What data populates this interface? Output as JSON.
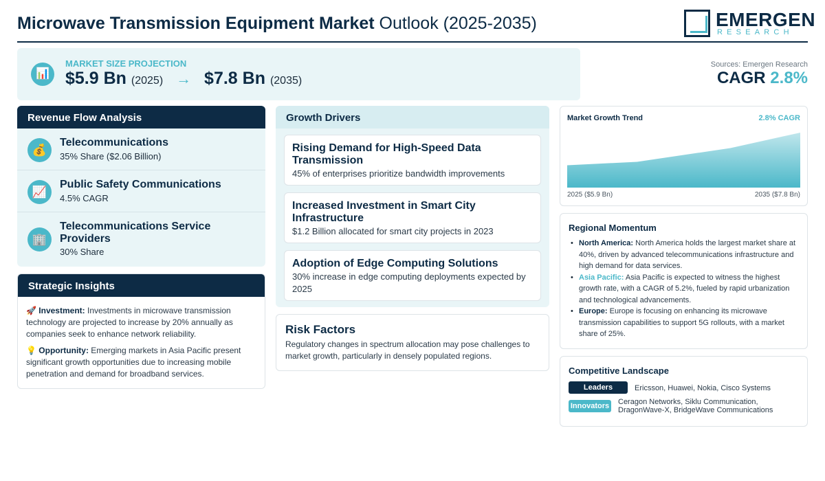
{
  "header": {
    "title_bold": "Microwave Transmission Equipment Market",
    "title_light": "Outlook (2025-2035)",
    "logo_name": "EMERGEN",
    "logo_sub": "RESEARCH"
  },
  "projection": {
    "icon": "bar-chart-icon",
    "label": "MARKET SIZE PROJECTION",
    "start_value": "$5.9 Bn",
    "start_year": "(2025)",
    "arrow": "→",
    "end_value": "$7.8 Bn",
    "end_year": "(2035)"
  },
  "summary": {
    "sources": "Sources: Emergen Research",
    "cagr_label": "CAGR",
    "cagr_value": "2.8%"
  },
  "revenue": {
    "heading": "Revenue Flow Analysis",
    "items": [
      {
        "icon": "money-bag-icon",
        "glyph": "💰",
        "title": "Telecommunications",
        "subtitle": "35% Share ($2.06 Billion)"
      },
      {
        "icon": "trend-chart-icon",
        "glyph": "📈",
        "title": "Public Safety Communications",
        "subtitle": "4.5% CAGR"
      },
      {
        "icon": "office-building-icon",
        "glyph": "🏢",
        "title": "Telecommunications Service Providers",
        "subtitle": "30% Share"
      }
    ]
  },
  "insights": {
    "heading": "Strategic Insights",
    "items": [
      {
        "glyph": "🚀",
        "label": "Investment:",
        "text": "Investments in microwave transmission technology are projected to increase by 20% annually as companies seek to enhance network reliability."
      },
      {
        "glyph": "💡",
        "label": "Opportunity:",
        "text": "Emerging markets in Asia Pacific present significant growth opportunities due to increasing mobile penetration and demand for broadband services."
      }
    ]
  },
  "drivers": {
    "heading": "Growth Drivers",
    "items": [
      {
        "title": "Rising Demand for High-Speed Data Transmission",
        "subtitle": "45% of enterprises prioritize bandwidth improvements"
      },
      {
        "title": "Increased Investment in Smart City Infrastructure",
        "subtitle": "$1.2 Billion allocated for smart city projects in 2023"
      },
      {
        "title": "Adoption of Edge Computing Solutions",
        "subtitle": "30% increase in edge computing deployments expected by 2025"
      }
    ]
  },
  "risk": {
    "heading": "Risk Factors",
    "text": "Regulatory changes in spectrum allocation may pose challenges to market growth, particularly in densely populated regions."
  },
  "trend": {
    "title": "Market Growth Trend",
    "cagr_label": "2.8% CAGR",
    "start_label": "2025 ($5.9 Bn)",
    "end_label": "2035 ($7.8 Bn)",
    "fill_color": "#4bb8c9"
  },
  "chart_data": {
    "type": "area",
    "title": "Market Growth Trend",
    "x": [
      2025,
      2028,
      2032,
      2035
    ],
    "series": [
      {
        "values": [
          5.9,
          6.1,
          6.9,
          7.8
        ]
      }
    ],
    "xlabel": "",
    "ylabel": "",
    "grid": false
  },
  "regional": {
    "heading": "Regional Momentum",
    "items": [
      {
        "region": "North America:",
        "accent": false,
        "text": "North America holds the largest market share at 40%, driven by advanced telecommunications infrastructure and high demand for data services."
      },
      {
        "region": "Asia Pacific:",
        "accent": true,
        "text": "Asia Pacific is expected to witness the highest growth rate, with a CAGR of 5.2%, fueled by rapid urbanization and technological advancements."
      },
      {
        "region": "Europe:",
        "accent": false,
        "text": "Europe is focusing on enhancing its microwave transmission capabilities to support 5G rollouts, with a market share of 25%."
      }
    ]
  },
  "competitive": {
    "heading": "Competitive Landscape",
    "leaders_label": "Leaders",
    "leaders_text": "Ericsson, Huawei, Nokia, Cisco Systems",
    "innovators_label": "Innovators",
    "innovators_text_line1": "Ceragon Networks, Siklu Communication,",
    "innovators_text_line2": "DragonWave-X, BridgeWave Communications"
  },
  "colors": {
    "navy": "#0d2b45",
    "accent": "#4bb8c9",
    "panel": "#e9f5f7"
  }
}
